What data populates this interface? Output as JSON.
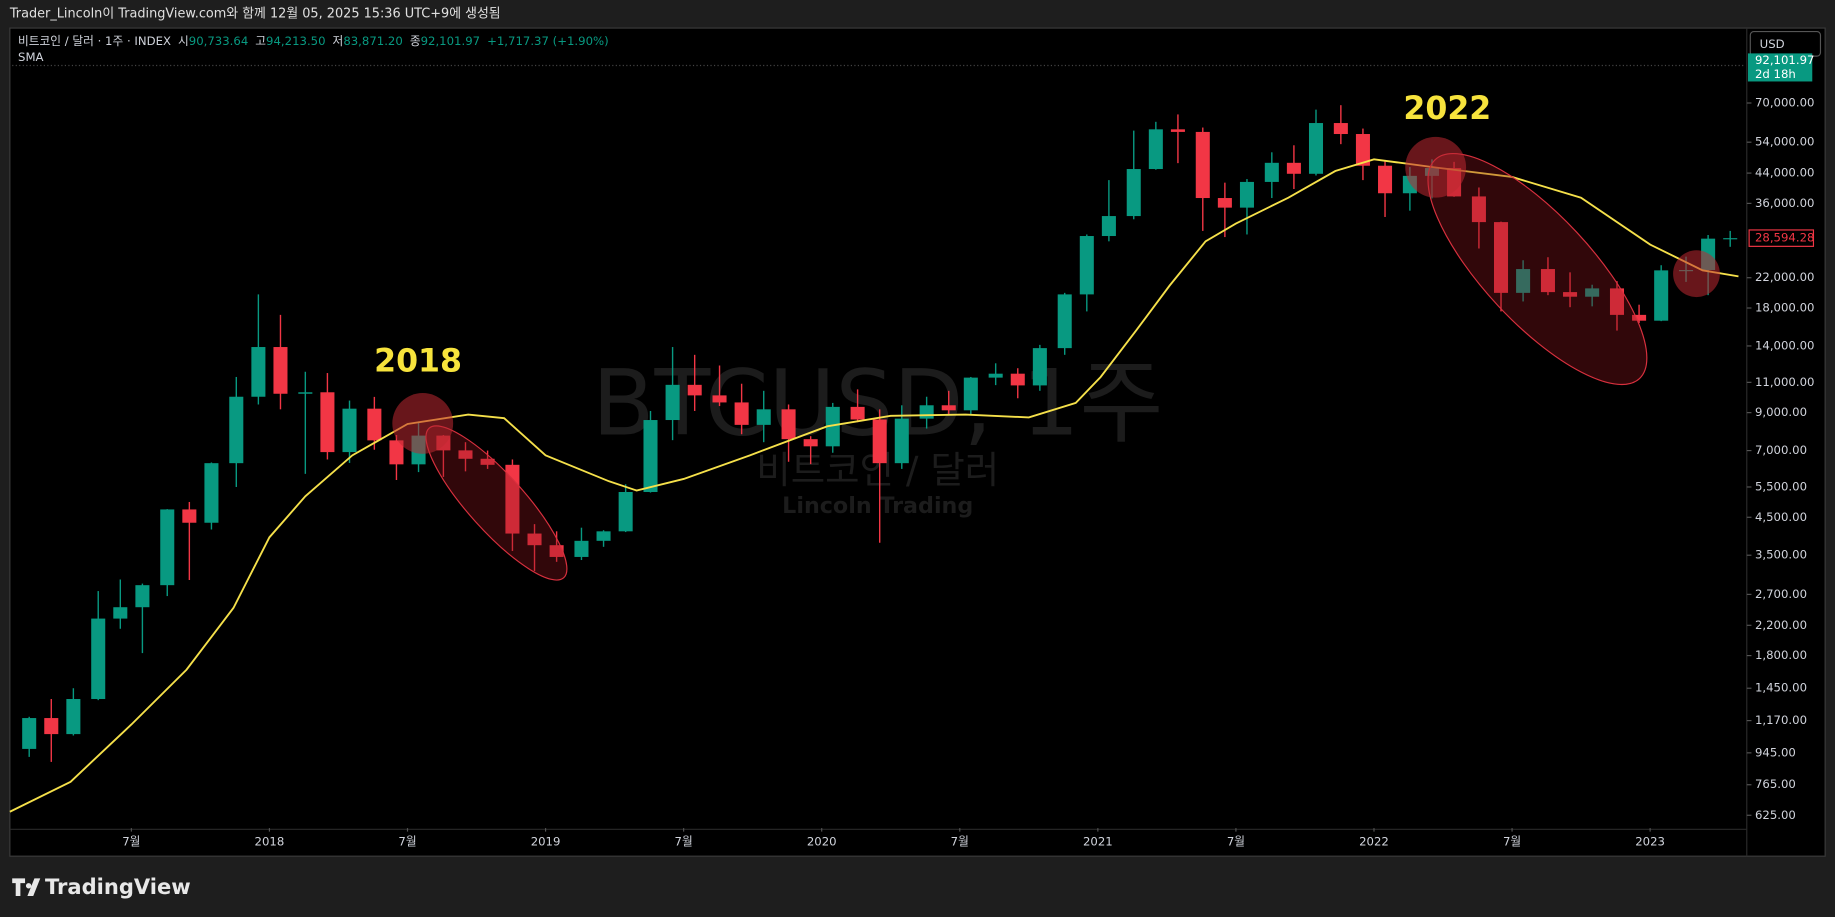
{
  "header": {
    "text": "Trader_Lincoln이 TradingView.com와 함께 12월 05, 2025 15:36 UTC+9에 생성됨"
  },
  "legend": {
    "symbol": "비트코인 / 달러 · 1주 · INDEX",
    "open_label": "시",
    "open": "90,733.64",
    "high_label": "고",
    "high": "94,213.50",
    "low_label": "저",
    "low": "83,871.20",
    "close_label": "종",
    "close": "92,101.97",
    "change": "+1,717.37 (+1.90%)"
  },
  "watermark": {
    "symbol": "BTCUSD, 1주",
    "name": "비트코인 / 달러",
    "author": "Lincoln Trading"
  },
  "currency": "USD",
  "footer": {
    "brand": "TradingView"
  },
  "chart_data": {
    "type": "candlestick",
    "x": [
      2017.13,
      2017.21,
      2017.29,
      2017.38,
      2017.46,
      2017.54,
      2017.63,
      2017.71,
      2017.79,
      2017.88,
      2017.96,
      2018.04,
      2018.13,
      2018.21,
      2018.29,
      2018.38,
      2018.46,
      2018.54,
      2018.63,
      2018.71,
      2018.79,
      2018.88,
      2018.96,
      2019.04,
      2019.13,
      2019.21,
      2019.29,
      2019.38,
      2019.46,
      2019.54,
      2019.63,
      2019.71,
      2019.79,
      2019.88,
      2019.96,
      2020.04,
      2020.13,
      2020.21,
      2020.29,
      2020.38,
      2020.46,
      2020.54,
      2020.63,
      2020.71,
      2020.79,
      2020.88,
      2020.96,
      2021.04,
      2021.13,
      2021.21,
      2021.29,
      2021.38,
      2021.46,
      2021.54,
      2021.63,
      2021.71,
      2021.79,
      2021.88,
      2021.96,
      2022.04,
      2022.13,
      2022.21,
      2022.29,
      2022.38,
      2022.46,
      2022.54,
      2022.63,
      2022.71,
      2022.79,
      2022.88,
      2022.96,
      2023.04,
      2023.13,
      2023.21,
      2023.29
    ],
    "open": [
      970,
      1190,
      1070,
      1350,
      2300,
      2480,
      2870,
      4740,
      4340,
      6440,
      10000,
      13900,
      10200,
      10300,
      6930,
      9240,
      7490,
      6390,
      7730,
      7010,
      6630,
      6370,
      4040,
      3740,
      3460,
      3850,
      4100,
      5320,
      8570,
      10820,
      10090,
      9630,
      8300,
      9200,
      7550,
      7200,
      9350,
      8600,
      6440,
      8650,
      9450,
      9140,
      11350,
      11650,
      10780,
      13800,
      19700,
      29000,
      33100,
      45200,
      58800,
      57800,
      37300,
      35000,
      41500,
      47100,
      43800,
      61300,
      57000,
      46200,
      38500,
      43200,
      45500,
      37700,
      31800,
      19900,
      23300,
      20000,
      19400,
      20500,
      17200,
      16550,
      23100,
      23150,
      28500
    ],
    "high": [
      1200,
      1350,
      1450,
      2760,
      2980,
      2900,
      4750,
      4980,
      6470,
      11400,
      19700,
      17200,
      11800,
      11700,
      9750,
      9990,
      7760,
      8490,
      7760,
      7400,
      7000,
      6600,
      4300,
      4100,
      4200,
      4130,
      5600,
      9100,
      13900,
      13200,
      12300,
      10900,
      10400,
      9500,
      7700,
      9600,
      10500,
      9200,
      9450,
      10000,
      10400,
      11400,
      12480,
      12080,
      14100,
      19900,
      29300,
      42000,
      58300,
      61800,
      64900,
      59500,
      41300,
      42300,
      50500,
      52900,
      67000,
      69000,
      59100,
      48000,
      45800,
      48200,
      47400,
      40000,
      31900,
      24700,
      25200,
      22800,
      21000,
      21500,
      18400,
      23900,
      25300,
      29200,
      30000
    ],
    "low": [
      920,
      890,
      1060,
      1340,
      2150,
      1830,
      2670,
      2970,
      4150,
      5500,
      9500,
      9200,
      6000,
      6600,
      6450,
      7040,
      5760,
      6070,
      5880,
      6100,
      6200,
      3600,
      3150,
      3350,
      3390,
      3700,
      4080,
      5300,
      7500,
      9100,
      9400,
      7800,
      7400,
      6500,
      6400,
      6900,
      8450,
      3800,
      6200,
      8100,
      8900,
      8900,
      10800,
      9900,
      10400,
      13200,
      17600,
      28000,
      32400,
      45000,
      47000,
      30000,
      28800,
      29300,
      37300,
      39600,
      43300,
      53300,
      42000,
      32900,
      34300,
      37200,
      37600,
      26700,
      17600,
      18800,
      19600,
      18100,
      18200,
      15500,
      16300,
      16500,
      21400,
      19600,
      27000
    ],
    "close": [
      1190,
      1070,
      1350,
      2300,
      2480,
      2870,
      4740,
      4340,
      6440,
      10000,
      13900,
      10200,
      10300,
      6930,
      9240,
      7490,
      6390,
      7730,
      7010,
      6630,
      6370,
      4040,
      3740,
      3460,
      3850,
      4100,
      5320,
      8570,
      10820,
      10090,
      9630,
      8300,
      9200,
      7550,
      7200,
      9350,
      8600,
      6440,
      8650,
      9450,
      9140,
      11350,
      11650,
      10780,
      13800,
      19700,
      29000,
      33100,
      45200,
      58800,
      57800,
      37300,
      35000,
      41500,
      47100,
      43800,
      61300,
      57000,
      46200,
      38500,
      43200,
      45500,
      37700,
      31800,
      19900,
      23300,
      20000,
      19400,
      20500,
      17200,
      16550,
      23100,
      23150,
      28500,
      28594.28
    ],
    "up_color": "#089981",
    "down_color": "#f23645",
    "sma": {
      "name": "SMA",
      "color": "#f5e04a",
      "x": [
        2017.06,
        2017.28,
        2017.5,
        2017.7,
        2017.87,
        2018,
        2018.13,
        2018.3,
        2018.5,
        2018.72,
        2018.85,
        2019,
        2019.23,
        2019.33,
        2019.5,
        2019.74,
        2020.02,
        2020.25,
        2020.52,
        2020.75,
        2020.92,
        2021.01,
        2021.14,
        2021.26,
        2021.39,
        2021.5,
        2021.69,
        2021.86,
        2022,
        2022.22,
        2022.5,
        2022.75,
        2023,
        2023.19,
        2023.32
      ],
      "values": [
        640,
        780,
        1140,
        1640,
        2470,
        3940,
        5170,
        6780,
        8350,
        8890,
        8680,
        6780,
        5710,
        5370,
        5800,
        6780,
        8220,
        8810,
        8890,
        8720,
        9600,
        11400,
        15550,
        20900,
        28000,
        31500,
        37400,
        44600,
        48200,
        45700,
        42900,
        37400,
        27400,
        23100,
        22200
      ]
    },
    "log_scale": true,
    "grid": false,
    "xlim": [
      2017.06,
      2023.35
    ],
    "xticks": [
      {
        "value": 2017.5,
        "label": "7월"
      },
      2018,
      {
        "value": 2018.5,
        "label": "7월"
      },
      2019,
      {
        "value": 2019.5,
        "label": "7월"
      },
      2020,
      {
        "value": 2020.5,
        "label": "7월"
      },
      2021,
      {
        "value": 2021.5,
        "label": "7월"
      },
      2022,
      {
        "value": 2022.5,
        "label": "7월"
      },
      2023
    ],
    "ylim": [
      574,
      115000
    ],
    "yticks": [
      {
        "value": 625,
        "label": "625.00"
      },
      {
        "value": 765,
        "label": "765.00"
      },
      {
        "value": 945,
        "label": "945.00"
      },
      {
        "value": 1170,
        "label": "1,170.00"
      },
      {
        "value": 1450,
        "label": "1,450.00"
      },
      {
        "value": 1800,
        "label": "1,800.00"
      },
      {
        "value": 2200,
        "label": "2,200.00"
      },
      {
        "value": 2700,
        "label": "2,700.00"
      },
      {
        "value": 3500,
        "label": "3,500.00"
      },
      {
        "value": 4500,
        "label": "4,500.00"
      },
      {
        "value": 5500,
        "label": "5,500.00"
      },
      {
        "value": 7000,
        "label": "7,000.00"
      },
      {
        "value": 9000,
        "label": "9,000.00"
      },
      {
        "value": 11000,
        "label": "11,000.00"
      },
      {
        "value": 14000,
        "label": "14,000.00"
      },
      {
        "value": 18000,
        "label": "18,000.00"
      },
      {
        "value": 22000,
        "label": "22,000.00"
      },
      {
        "value": 36000,
        "label": "36,000.00"
      },
      {
        "value": 44000,
        "label": "44,000.00"
      },
      {
        "value": 54000,
        "label": "54,000.00"
      },
      {
        "value": 70000,
        "label": "70,000.00"
      }
    ],
    "last_price": {
      "value": 92101.97,
      "label": "92,101.97",
      "countdown": "2d 18h",
      "color": "#089981"
    },
    "marker_price": {
      "value": 28594.28,
      "label": "28,594.28",
      "color": "#f23645"
    },
    "annotations": [
      {
        "text": "2018"
      },
      {
        "text": "2022"
      }
    ]
  }
}
